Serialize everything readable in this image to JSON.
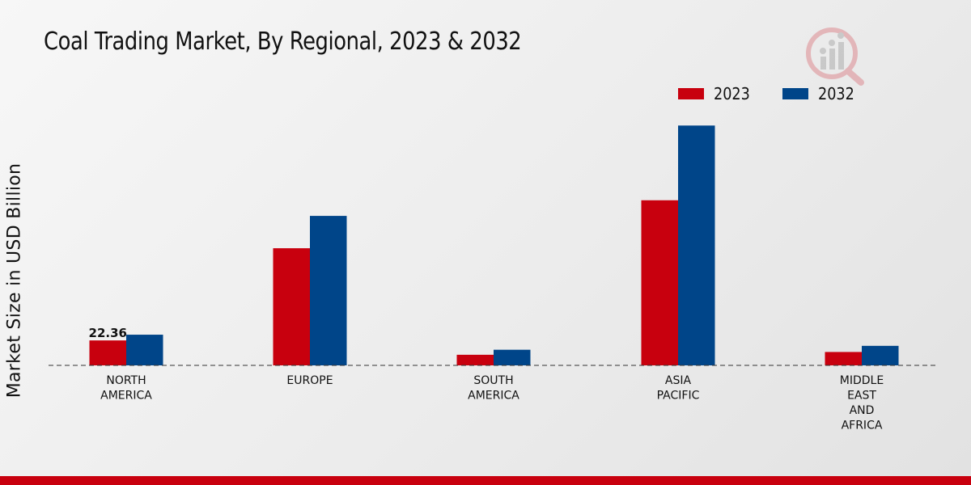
{
  "title": "Coal Trading Market, By Regional, 2023 & 2032",
  "colors": {
    "series_2023": "#c8000e",
    "series_2032": "#004589"
  },
  "legend": [
    {
      "label": "2023",
      "color": "#c8000e"
    },
    {
      "label": "2032",
      "color": "#004589"
    }
  ],
  "chart_data": {
    "type": "bar",
    "title": "Coal Trading Market, By Regional, 2023 & 2032",
    "xlabel": "",
    "ylabel": "Market Size in USD Billion",
    "categories": [
      [
        "NORTH",
        "AMERICA"
      ],
      [
        "EUROPE"
      ],
      [
        "SOUTH",
        "AMERICA"
      ],
      [
        "ASIA",
        "PACIFIC"
      ],
      [
        "MIDDLE",
        "EAST",
        "AND",
        "AFRICA"
      ]
    ],
    "series": [
      {
        "name": "2023",
        "values": [
          22.36,
          105,
          9.5,
          148,
          12
        ]
      },
      {
        "name": "2032",
        "values": [
          27.5,
          134,
          14,
          215,
          17.5
        ]
      }
    ],
    "ylim": [
      0,
      300
    ],
    "grid": false,
    "legend_position": "top-right",
    "annotations": [
      {
        "category": 0,
        "series": 0,
        "text": "22.36"
      }
    ]
  }
}
